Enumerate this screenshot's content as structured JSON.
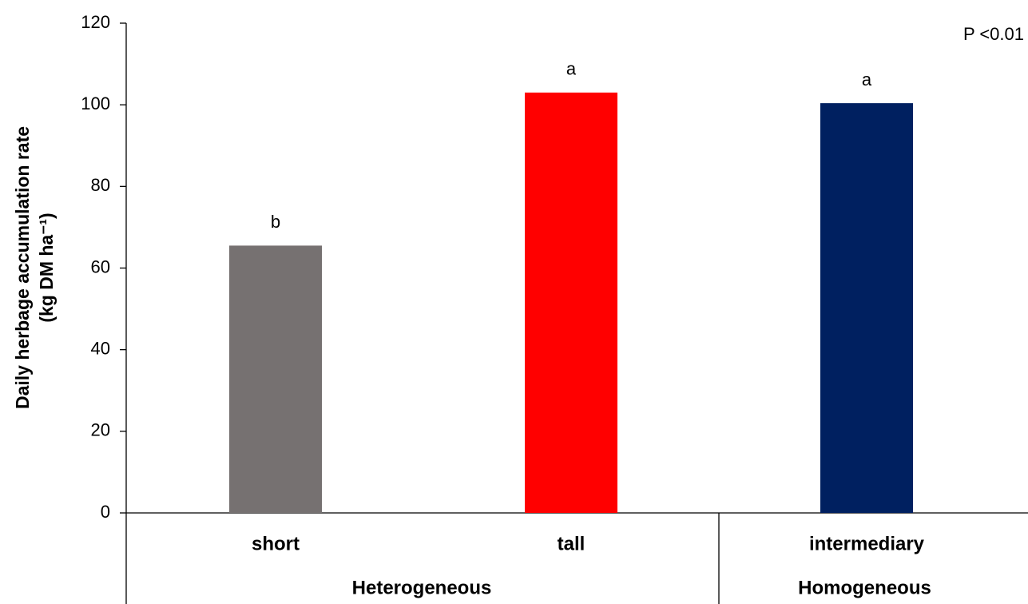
{
  "chart_data": {
    "type": "bar",
    "y_label_lines": [
      "Daily herbage accumulation rate",
      "(kg DM ha⁻¹)"
    ],
    "annotation": "P <0.01",
    "categories": [
      "short",
      "tall",
      "intermediary"
    ],
    "values": [
      65.5,
      103,
      100.4
    ],
    "colors": [
      "#767171",
      "#ff0000",
      "#002060"
    ],
    "significance_letters": [
      "b",
      "a",
      "a"
    ],
    "groups": [
      {
        "name": "Heterogeneous",
        "count": 2
      },
      {
        "name": "Homogeneous",
        "count": 1
      }
    ],
    "ylim": [
      0,
      120
    ],
    "yticks": [
      0,
      20,
      40,
      60,
      80,
      100,
      120
    ],
    "grid": false
  }
}
